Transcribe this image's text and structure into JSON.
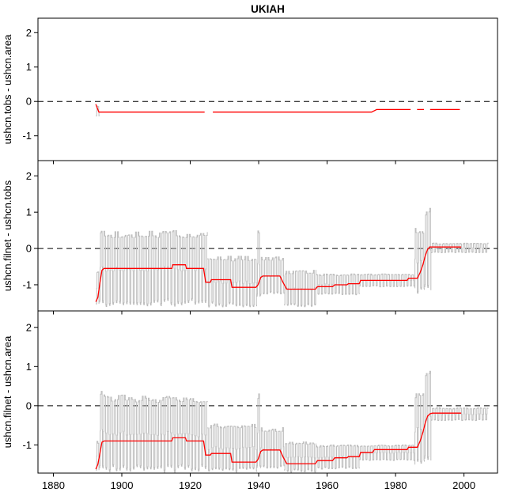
{
  "title": "UKIAH",
  "colors": {
    "red_line": "#ff0000",
    "gray_series": "#bdbdbd",
    "axis": "#000000",
    "background": "#ffffff"
  },
  "chart_data": {
    "type": "line",
    "title": "UKIAH",
    "description": "Three stacked panels of USHCN station temperature adjustment differences (deg C) vs year. Gray = monthly difference series oscillating within seasonal envelopes; red = stepped annual mean difference. Dashed line at zero.",
    "x_axis": {
      "ticks": [
        1880,
        1900,
        1920,
        1940,
        1960,
        1980,
        2000
      ],
      "range": [
        1875.5,
        2009.8
      ]
    },
    "y_axis": {
      "ticks": [
        -1,
        0,
        1,
        2
      ],
      "range": [
        -1.72,
        2.42
      ]
    },
    "zero_line_style": "dashed",
    "legend": "none",
    "grid": false,
    "panels": [
      {
        "ylabel": "ushcn.tobs - ushcn.area",
        "gray_name": "monthly-difference",
        "red_name": "annual-step-difference",
        "gray_envelope": [
          {
            "from": 1892.5,
            "to": 1893.4,
            "min": -0.45,
            "max": -0.12
          }
        ],
        "red_segments": [
          [
            [
              1892.4,
              -0.08
            ],
            [
              1893.3,
              -0.31
            ],
            [
              1924.2,
              -0.31
            ]
          ],
          [
            [
              1926.6,
              -0.31
            ],
            [
              1973.0,
              -0.31
            ],
            [
              1974.5,
              -0.235
            ],
            [
              1984.4,
              -0.235
            ]
          ],
          [
            [
              1986.3,
              -0.235
            ],
            [
              1988.3,
              -0.235
            ]
          ],
          [
            [
              1990.1,
              -0.235
            ],
            [
              1998.8,
              -0.235
            ]
          ]
        ]
      },
      {
        "ylabel": "ushcn.filnet - ushcn.tobs",
        "gray_name": "monthly-difference",
        "red_name": "annual-step-difference",
        "gray_envelope": [
          {
            "from": 1892.5,
            "to": 1893.3,
            "min": -1.6,
            "max": -0.6
          },
          {
            "from": 1893.3,
            "to": 1925.0,
            "min": -1.6,
            "max": 0.5
          },
          {
            "from": 1925.0,
            "to": 1939.4,
            "min": -1.62,
            "max": -0.2
          },
          {
            "from": 1939.4,
            "to": 1940.4,
            "min": -1.35,
            "max": 0.62
          },
          {
            "from": 1940.4,
            "to": 1947.5,
            "min": -1.3,
            "max": -0.22
          },
          {
            "from": 1947.5,
            "to": 1956.8,
            "min": -1.62,
            "max": -0.6
          },
          {
            "from": 1956.8,
            "to": 1969.5,
            "min": -1.28,
            "max": -0.7
          },
          {
            "from": 1969.5,
            "to": 1985.6,
            "min": -1.06,
            "max": -0.7
          },
          {
            "from": 1985.6,
            "to": 1988.4,
            "min": -1.25,
            "max": 0.6
          },
          {
            "from": 1988.4,
            "to": 1990.3,
            "min": -1.2,
            "max": 1.15
          },
          {
            "from": 1990.3,
            "to": 2007.2,
            "min": -0.12,
            "max": 0.15
          }
        ],
        "red_segments": [
          [
            [
              1892.4,
              -1.47
            ],
            [
              1893.0,
              -1.35
            ],
            [
              1893.6,
              -0.95
            ],
            [
              1894.2,
              -0.6
            ],
            [
              1894.8,
              -0.55
            ],
            [
              1914.6,
              -0.55
            ],
            [
              1914.9,
              -0.45
            ],
            [
              1918.6,
              -0.45
            ],
            [
              1918.9,
              -0.55
            ],
            [
              1923.9,
              -0.55
            ],
            [
              1924.5,
              -0.93
            ],
            [
              1925.9,
              -0.93
            ],
            [
              1926.2,
              -0.86
            ],
            [
              1931.8,
              -0.86
            ],
            [
              1932.2,
              -1.07
            ],
            [
              1939.2,
              -1.07
            ],
            [
              1939.8,
              -1.0
            ],
            [
              1940.6,
              -0.8
            ],
            [
              1941.2,
              -0.76
            ],
            [
              1946.2,
              -0.76
            ],
            [
              1947.2,
              -0.95
            ],
            [
              1948.2,
              -1.12
            ],
            [
              1956.6,
              -1.12
            ],
            [
              1957.2,
              -1.05
            ],
            [
              1961.6,
              -1.05
            ],
            [
              1962.2,
              -1.0
            ],
            [
              1965.8,
              -1.0
            ],
            [
              1966.2,
              -0.97
            ],
            [
              1969.4,
              -0.97
            ],
            [
              1969.8,
              -0.88
            ],
            [
              1983.4,
              -0.88
            ],
            [
              1983.8,
              -0.82
            ],
            [
              1986.4,
              -0.82
            ],
            [
              1987.2,
              -0.66
            ],
            [
              1988.0,
              -0.45
            ],
            [
              1988.7,
              -0.2
            ],
            [
              1989.4,
              -0.02
            ],
            [
              1990.0,
              0.04
            ],
            [
              1999.2,
              0.04
            ]
          ]
        ]
      },
      {
        "ylabel": "ushcn.filnet - ushcn.area",
        "gray_name": "monthly-difference",
        "red_name": "annual-step-difference",
        "gray_envelope": [
          {
            "from": 1892.5,
            "to": 1893.3,
            "min": -1.7,
            "max": -0.9
          },
          {
            "from": 1893.3,
            "to": 1894.5,
            "min": -1.7,
            "max": 0.5
          },
          {
            "from": 1894.5,
            "to": 1925.0,
            "min": -1.7,
            "max": 0.28
          },
          {
            "from": 1925.0,
            "to": 1939.4,
            "min": -1.7,
            "max": -0.45
          },
          {
            "from": 1939.4,
            "to": 1940.4,
            "min": -1.6,
            "max": 0.38
          },
          {
            "from": 1940.4,
            "to": 1947.5,
            "min": -1.6,
            "max": -0.55
          },
          {
            "from": 1947.5,
            "to": 1956.8,
            "min": -1.7,
            "max": -0.9
          },
          {
            "from": 1956.8,
            "to": 1969.5,
            "min": -1.62,
            "max": -1.0
          },
          {
            "from": 1969.5,
            "to": 1985.6,
            "min": -1.4,
            "max": -1.0
          },
          {
            "from": 1985.6,
            "to": 1988.4,
            "min": -1.55,
            "max": 0.35
          },
          {
            "from": 1988.4,
            "to": 1990.3,
            "min": -1.5,
            "max": 0.95
          },
          {
            "from": 1990.3,
            "to": 2007.2,
            "min": -0.38,
            "max": -0.05
          }
        ],
        "red_segments": [
          [
            [
              1892.4,
              -1.62
            ],
            [
              1893.0,
              -1.5
            ],
            [
              1893.6,
              -1.22
            ],
            [
              1894.2,
              -0.93
            ],
            [
              1894.8,
              -0.9
            ],
            [
              1914.6,
              -0.9
            ],
            [
              1914.9,
              -0.82
            ],
            [
              1918.6,
              -0.82
            ],
            [
              1918.9,
              -0.9
            ],
            [
              1923.9,
              -0.9
            ],
            [
              1924.5,
              -1.26
            ],
            [
              1925.9,
              -1.26
            ],
            [
              1926.2,
              -1.22
            ],
            [
              1931.8,
              -1.22
            ],
            [
              1932.2,
              -1.44
            ],
            [
              1939.2,
              -1.44
            ],
            [
              1939.8,
              -1.37
            ],
            [
              1940.6,
              -1.17
            ],
            [
              1941.2,
              -1.13
            ],
            [
              1946.2,
              -1.13
            ],
            [
              1947.2,
              -1.32
            ],
            [
              1948.2,
              -1.48
            ],
            [
              1956.6,
              -1.48
            ],
            [
              1957.2,
              -1.4
            ],
            [
              1961.6,
              -1.4
            ],
            [
              1962.2,
              -1.33
            ],
            [
              1965.8,
              -1.33
            ],
            [
              1966.2,
              -1.3
            ],
            [
              1969.4,
              -1.3
            ],
            [
              1969.8,
              -1.19
            ],
            [
              1973.3,
              -1.19
            ],
            [
              1973.8,
              -1.12
            ],
            [
              1983.4,
              -1.12
            ],
            [
              1983.8,
              -1.06
            ],
            [
              1986.4,
              -1.06
            ],
            [
              1987.2,
              -0.9
            ],
            [
              1988.0,
              -0.68
            ],
            [
              1988.7,
              -0.44
            ],
            [
              1989.4,
              -0.26
            ],
            [
              1990.2,
              -0.2
            ],
            [
              1990.8,
              -0.19
            ],
            [
              1999.2,
              -0.19
            ]
          ]
        ]
      }
    ]
  }
}
